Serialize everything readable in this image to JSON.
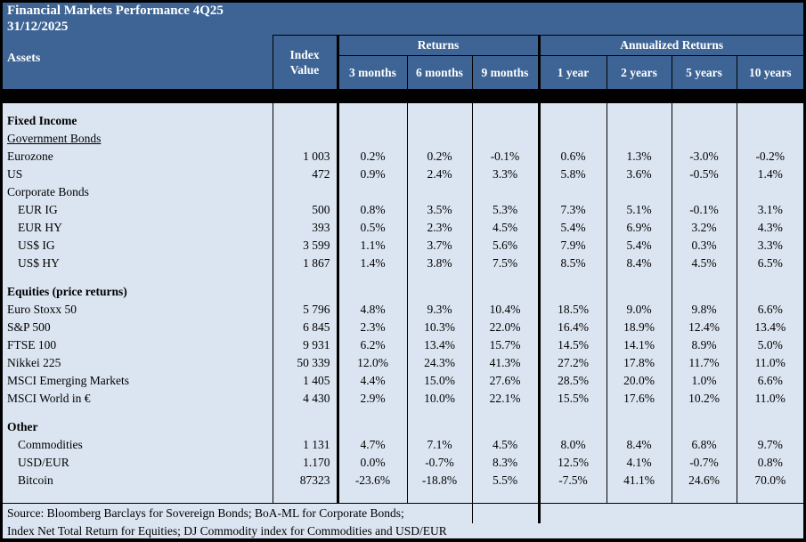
{
  "header": {
    "title": "Financial Markets Performance 4Q25",
    "date": "31/12/2025",
    "assets_header": "Assets",
    "index_value_header": "Index Value",
    "returns_group": "Returns",
    "annualized_group": "Annualized Returns",
    "periods": [
      "3 months",
      "6 months",
      "9 months",
      "1 year",
      "2 years",
      "5 years",
      "10 years"
    ]
  },
  "table": {
    "rows": [
      {
        "type": "spacer",
        "size": "s"
      },
      {
        "type": "section",
        "label": "Fixed Income"
      },
      {
        "type": "label",
        "label": "Government Bonds",
        "underline": true
      },
      {
        "type": "data",
        "label": "Eurozone",
        "index_value": "1 003",
        "values": [
          "0.2%",
          "0.2%",
          "-0.1%",
          "0.6%",
          "1.3%",
          "-3.0%",
          "-0.2%"
        ]
      },
      {
        "type": "data",
        "label": "US",
        "index_value": "472",
        "values": [
          "0.9%",
          "2.4%",
          "3.3%",
          "5.8%",
          "3.6%",
          "-0.5%",
          "1.4%"
        ]
      },
      {
        "type": "label",
        "label": "Corporate Bonds"
      },
      {
        "type": "data",
        "label": "EUR IG",
        "indent": true,
        "index_value": "500",
        "values": [
          "0.8%",
          "3.5%",
          "5.3%",
          "7.3%",
          "5.1%",
          "-0.1%",
          "3.1%"
        ]
      },
      {
        "type": "data",
        "label": "EUR HY",
        "indent": true,
        "index_value": "393",
        "values": [
          "0.5%",
          "2.3%",
          "4.5%",
          "5.4%",
          "6.9%",
          "3.2%",
          "4.3%"
        ]
      },
      {
        "type": "data",
        "label": "US$ IG",
        "indent": true,
        "index_value": "3 599",
        "values": [
          "1.1%",
          "3.7%",
          "5.6%",
          "7.9%",
          "5.4%",
          "0.3%",
          "3.3%"
        ]
      },
      {
        "type": "data",
        "label": "US$ HY",
        "indent": true,
        "index_value": "1 867",
        "values": [
          "1.4%",
          "3.8%",
          "7.5%",
          "8.5%",
          "8.4%",
          "4.5%",
          "6.5%"
        ]
      },
      {
        "type": "spacer",
        "size": "m"
      },
      {
        "type": "section",
        "label": "Equities (price returns)"
      },
      {
        "type": "data",
        "label": "Euro Stoxx 50",
        "index_value": "5 796",
        "values": [
          "4.8%",
          "9.3%",
          "10.4%",
          "18.5%",
          "9.0%",
          "9.8%",
          "6.6%"
        ]
      },
      {
        "type": "data",
        "label": "S&P 500",
        "index_value": "6 845",
        "values": [
          "2.3%",
          "10.3%",
          "22.0%",
          "16.4%",
          "18.9%",
          "12.4%",
          "13.4%"
        ]
      },
      {
        "type": "data",
        "label": "FTSE 100",
        "index_value": "9 931",
        "values": [
          "6.2%",
          "13.4%",
          "15.7%",
          "14.5%",
          "14.1%",
          "8.9%",
          "5.0%"
        ]
      },
      {
        "type": "data",
        "label": "Nikkei 225",
        "index_value": "50 339",
        "values": [
          "12.0%",
          "24.3%",
          "41.3%",
          "27.2%",
          "17.8%",
          "11.7%",
          "11.0%"
        ]
      },
      {
        "type": "data",
        "label": "MSCI Emerging Markets",
        "index_value": "1 405",
        "values": [
          "4.4%",
          "15.0%",
          "27.6%",
          "28.5%",
          "20.0%",
          "1.0%",
          "6.6%"
        ]
      },
      {
        "type": "data",
        "label": "MSCI World in €",
        "index_value": "4 430",
        "values": [
          "2.9%",
          "10.0%",
          "22.1%",
          "15.5%",
          "17.6%",
          "10.2%",
          "11.0%"
        ]
      },
      {
        "type": "spacer",
        "size": "m"
      },
      {
        "type": "section",
        "label": "Other"
      },
      {
        "type": "data",
        "label": "Commodities",
        "indent": true,
        "index_value": "1 131",
        "values": [
          "4.7%",
          "7.1%",
          "4.5%",
          "8.0%",
          "8.4%",
          "6.8%",
          "9.7%"
        ]
      },
      {
        "type": "data",
        "label": "USD/EUR",
        "indent": true,
        "index_value": "1.170",
        "values": [
          "0.0%",
          "-0.7%",
          "8.3%",
          "12.5%",
          "4.1%",
          "-0.7%",
          "0.8%"
        ]
      },
      {
        "type": "data",
        "label": "Bitcoin",
        "indent": true,
        "index_value": "87323",
        "values": [
          "-23.6%",
          "-18.8%",
          "5.5%",
          "-7.5%",
          "41.1%",
          "24.6%",
          "70.0%"
        ]
      },
      {
        "type": "spacer",
        "size": "l"
      }
    ]
  },
  "footer": {
    "line1": "Source: Bloomberg Barclays for Sovereign Bonds; BoA-ML for Corporate Bonds;",
    "line2": "Index Net Total Return for Equities; DJ Commodity index for Commodities and USD/EUR"
  },
  "colors": {
    "header_bg": "#3D6494",
    "header_text": "#FFFFFF",
    "body_bg": "#DBE5F1",
    "border": "#000000",
    "body_text": "#000000"
  }
}
